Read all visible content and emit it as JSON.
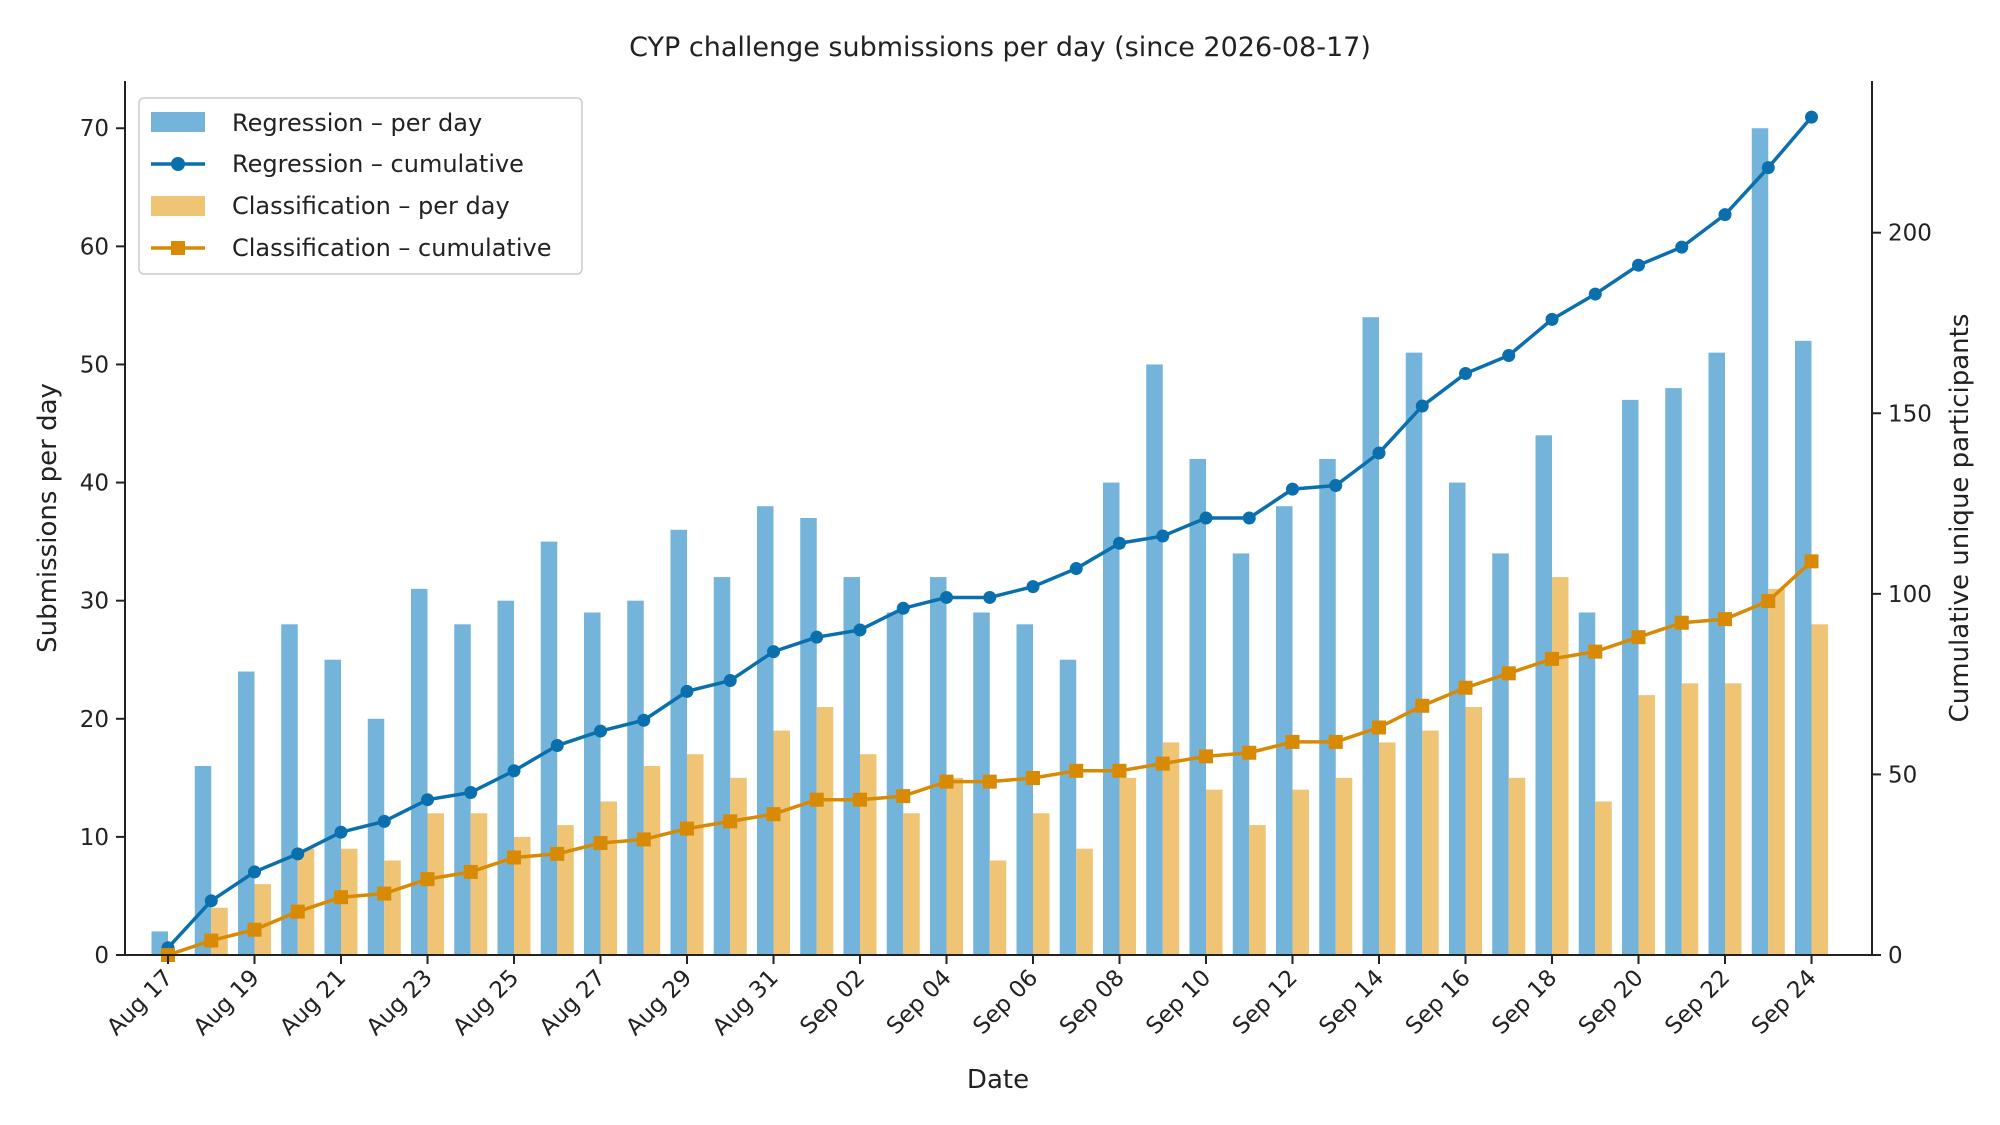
{
  "chart_data": {
    "type": "bar",
    "title": "CYP challenge submissions per day (since 2026-08-17)",
    "xlabel": "Date",
    "ylabel": "Submissions per day",
    "y2label": "Cumulative unique participants",
    "ylim": [
      0,
      74
    ],
    "y2lim": [
      0,
      242
    ],
    "yticks": [
      0,
      10,
      20,
      30,
      40,
      50,
      60,
      70
    ],
    "y2ticks": [
      0,
      50,
      100,
      150,
      200
    ],
    "legend_position": "top-left",
    "grid": false,
    "categories": [
      "Aug 17",
      "Aug 18",
      "Aug 19",
      "Aug 20",
      "Aug 21",
      "Aug 22",
      "Aug 23",
      "Aug 24",
      "Aug 25",
      "Aug 26",
      "Aug 27",
      "Aug 28",
      "Aug 29",
      "Aug 30",
      "Aug 31",
      "Sep 01",
      "Sep 02",
      "Sep 03",
      "Sep 04",
      "Sep 05",
      "Sep 06",
      "Sep 07",
      "Sep 08",
      "Sep 09",
      "Sep 10",
      "Sep 11",
      "Sep 12",
      "Sep 13",
      "Sep 14",
      "Sep 15",
      "Sep 16",
      "Sep 17",
      "Sep 18",
      "Sep 19",
      "Sep 20",
      "Sep 21",
      "Sep 22",
      "Sep 23",
      "Sep 24"
    ],
    "tick_labels": [
      "Aug 17",
      "Aug 19",
      "Aug 21",
      "Aug 23",
      "Aug 25",
      "Aug 27",
      "Aug 29",
      "Aug 31",
      "Sep 02",
      "Sep 04",
      "Sep 06",
      "Sep 08",
      "Sep 10",
      "Sep 12",
      "Sep 14",
      "Sep 16",
      "Sep 18",
      "Sep 20",
      "Sep 22",
      "Sep 24"
    ],
    "series": [
      {
        "name": "Regression – per day",
        "kind": "bar",
        "axis": "left",
        "color": "#75b4da",
        "values": [
          2,
          16,
          24,
          28,
          25,
          20,
          31,
          28,
          30,
          35,
          29,
          30,
          36,
          32,
          38,
          37,
          32,
          29,
          32,
          29,
          28,
          25,
          40,
          50,
          42,
          34,
          38,
          42,
          54,
          51,
          40,
          34,
          44,
          29,
          47,
          48,
          51,
          70,
          52
        ]
      },
      {
        "name": "Regression – cumulative",
        "kind": "line",
        "marker": "circle",
        "axis": "right",
        "color": "#0a6fad",
        "values": [
          2,
          15,
          23,
          28,
          34,
          37,
          43,
          45,
          51,
          58,
          62,
          65,
          73,
          76,
          84,
          88,
          90,
          96,
          99,
          99,
          102,
          107,
          114,
          116,
          121,
          121,
          129,
          130,
          139,
          152,
          161,
          166,
          176,
          183,
          191,
          196,
          205,
          218,
          232
        ]
      },
      {
        "name": "Classification – per day",
        "kind": "bar",
        "axis": "left",
        "color": "#efc475",
        "values": [
          0,
          4,
          6,
          9,
          9,
          8,
          12,
          12,
          10,
          11,
          13,
          16,
          17,
          15,
          19,
          21,
          17,
          12,
          15,
          8,
          12,
          9,
          15,
          18,
          14,
          11,
          14,
          15,
          18,
          19,
          21,
          15,
          32,
          13,
          22,
          23,
          23,
          31,
          28
        ]
      },
      {
        "name": "Classification – cumulative",
        "kind": "line",
        "marker": "square",
        "axis": "right",
        "color": "#d88a05",
        "values": [
          0,
          4,
          7,
          12,
          16,
          17,
          21,
          23,
          27,
          28,
          31,
          32,
          35,
          37,
          39,
          43,
          43,
          44,
          48,
          48,
          49,
          51,
          51,
          53,
          55,
          56,
          59,
          59,
          63,
          69,
          74,
          78,
          82,
          84,
          88,
          92,
          93,
          98,
          109
        ]
      }
    ]
  }
}
